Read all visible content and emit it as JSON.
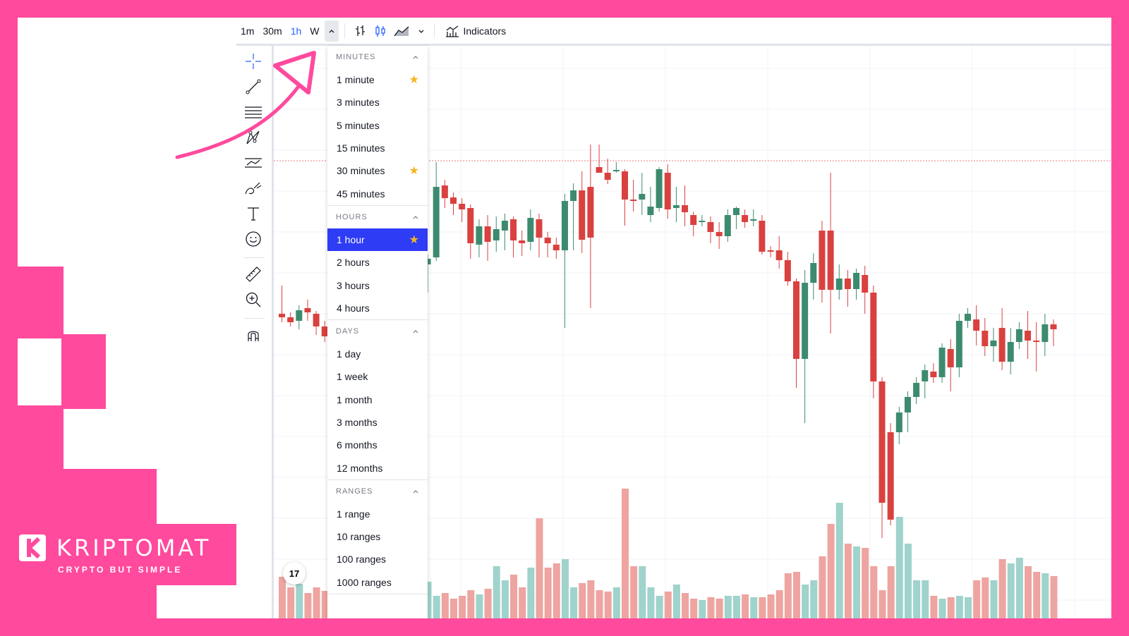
{
  "toolbar": {
    "intervals": [
      "1m",
      "30m",
      "1h",
      "W"
    ],
    "active_interval": "1h",
    "indicators_label": "Indicators"
  },
  "dropdown": {
    "sections": [
      {
        "title": "MINUTES",
        "items": [
          {
            "label": "1 minute",
            "starred": true
          },
          {
            "label": "3 minutes",
            "starred": false
          },
          {
            "label": "5 minutes",
            "starred": false
          },
          {
            "label": "15 minutes",
            "starred": false
          },
          {
            "label": "30 minutes",
            "starred": true
          },
          {
            "label": "45 minutes",
            "starred": false
          }
        ]
      },
      {
        "title": "HOURS",
        "items": [
          {
            "label": "1 hour",
            "starred": true,
            "selected": true
          },
          {
            "label": "2 hours",
            "starred": false
          },
          {
            "label": "3 hours",
            "starred": false
          },
          {
            "label": "4 hours",
            "starred": false
          }
        ]
      },
      {
        "title": "DAYS",
        "items": [
          {
            "label": "1 day",
            "starred": false
          },
          {
            "label": "1 week",
            "starred": false
          },
          {
            "label": "1 month",
            "starred": false
          },
          {
            "label": "3 months",
            "starred": false
          },
          {
            "label": "6 months",
            "starred": false
          },
          {
            "label": "12 months",
            "starred": false
          }
        ]
      },
      {
        "title": "RANGES",
        "items": [
          {
            "label": "1 range",
            "starred": false
          },
          {
            "label": "10 ranges",
            "starred": false
          },
          {
            "label": "100 ranges",
            "starred": false
          },
          {
            "label": "1000 ranges",
            "starred": false
          }
        ]
      }
    ]
  },
  "logo": {
    "brand": "KRIPTOMAT",
    "tagline": "CRYPTO BUT SIMPLE"
  },
  "tv_badge": "17",
  "colors": {
    "accent": "#ff4a9e",
    "up": "#3d8b6e",
    "down": "#d9413f",
    "selected": "#2e3cf5",
    "star": "#f5b51e"
  }
}
